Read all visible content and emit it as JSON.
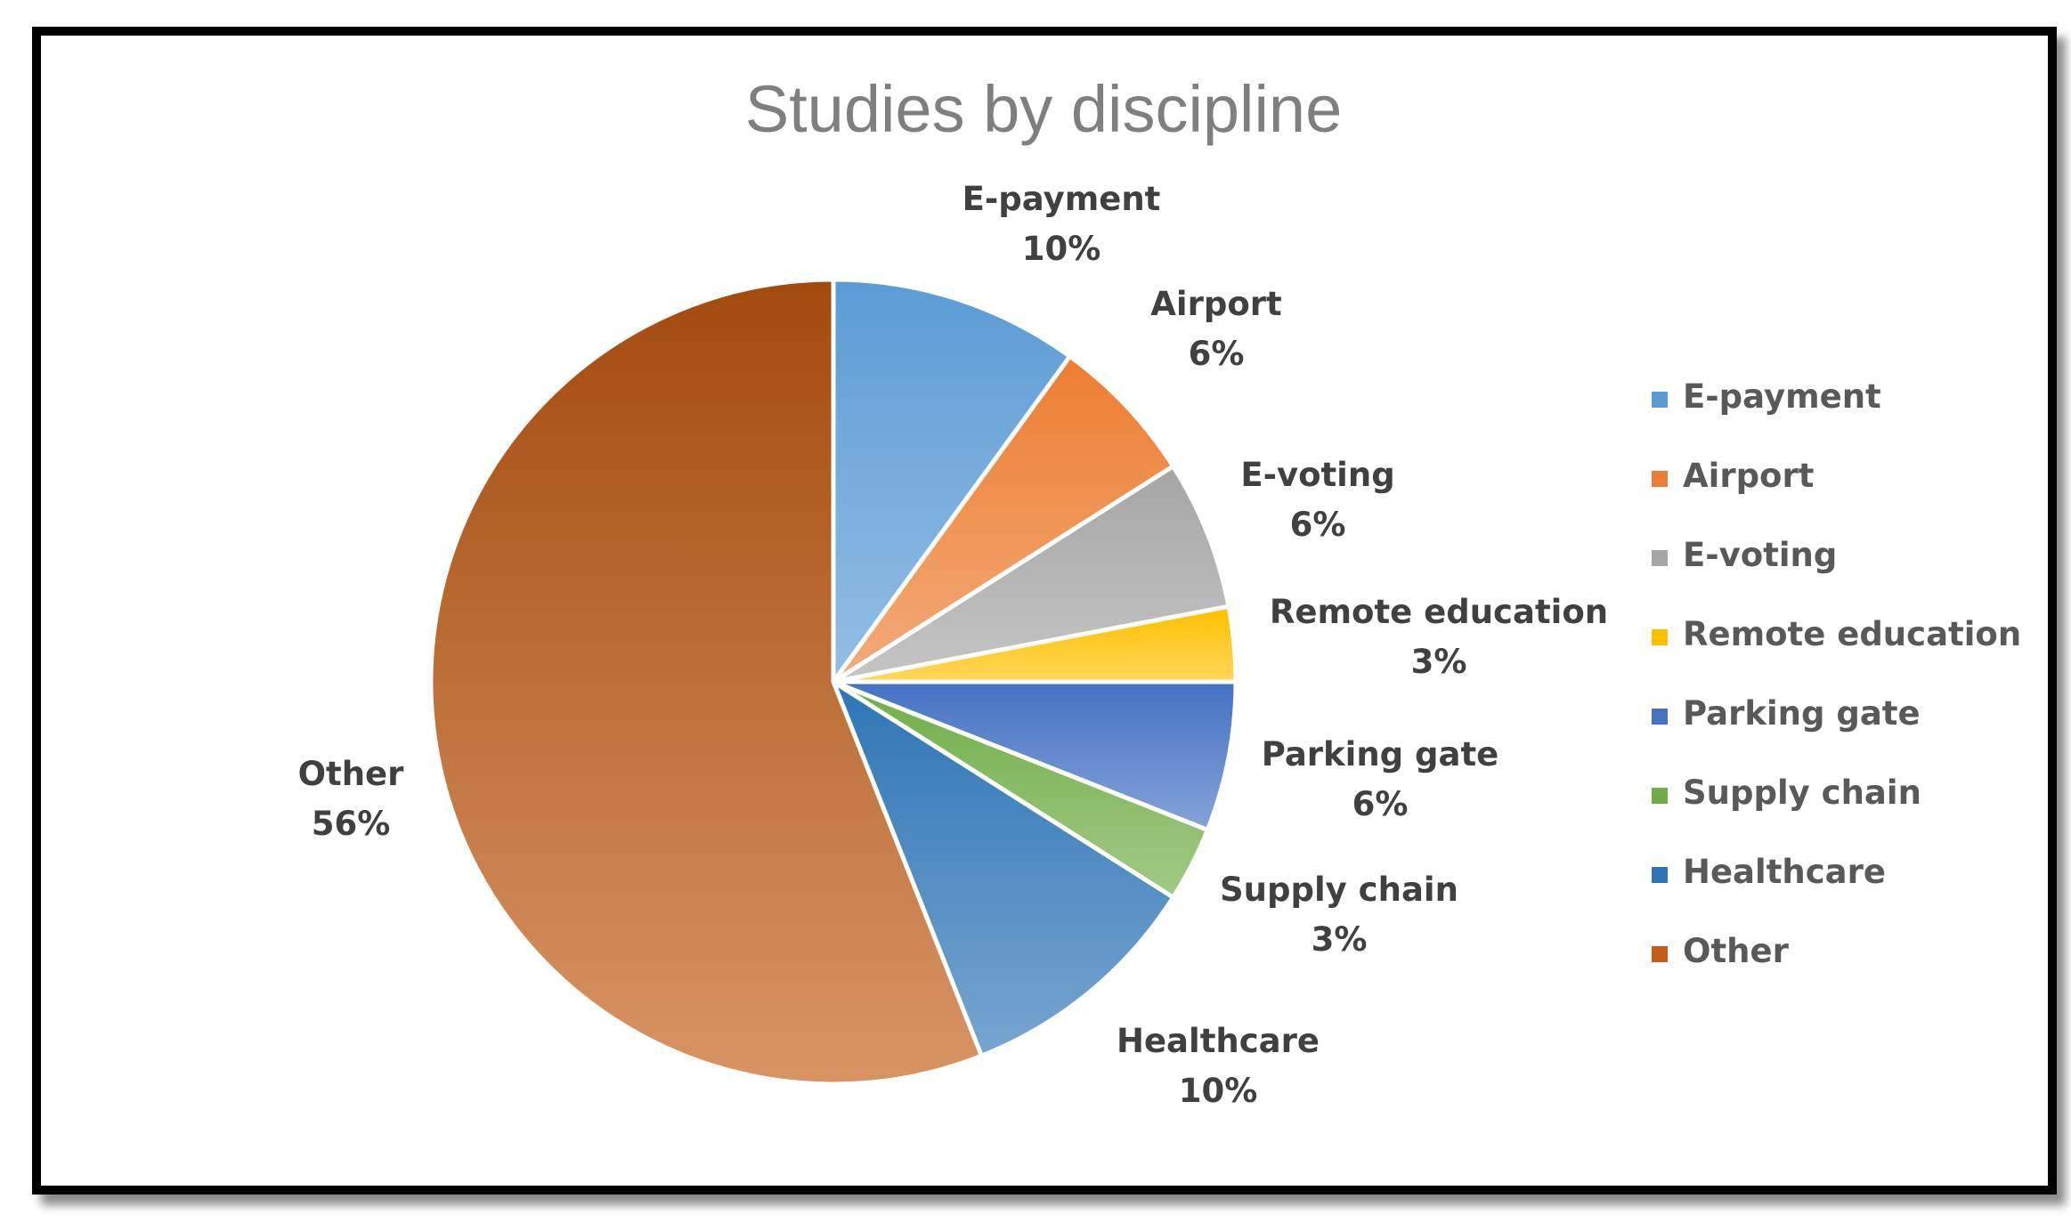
{
  "chart_data": {
    "type": "pie",
    "title": "Studies by discipline",
    "categories": [
      "E-payment",
      "Airport",
      "E-voting",
      "Remote education",
      "Parking gate",
      "Supply chain",
      "Healthcare",
      "Other"
    ],
    "values": [
      10,
      6,
      6,
      3,
      6,
      3,
      10,
      56
    ],
    "value_labels": [
      "10%",
      "6%",
      "6%",
      "3%",
      "6%",
      "3%",
      "10%",
      "56%"
    ],
    "unit": "%",
    "colors": [
      "#5b9bd5",
      "#ed7d31",
      "#a5a5a5",
      "#ffc000",
      "#4472c4",
      "#70ad47",
      "#2e75b6",
      "#c55a11"
    ],
    "legend_position": "right",
    "start_angle": "12 o'clock",
    "direction": "clockwise"
  }
}
